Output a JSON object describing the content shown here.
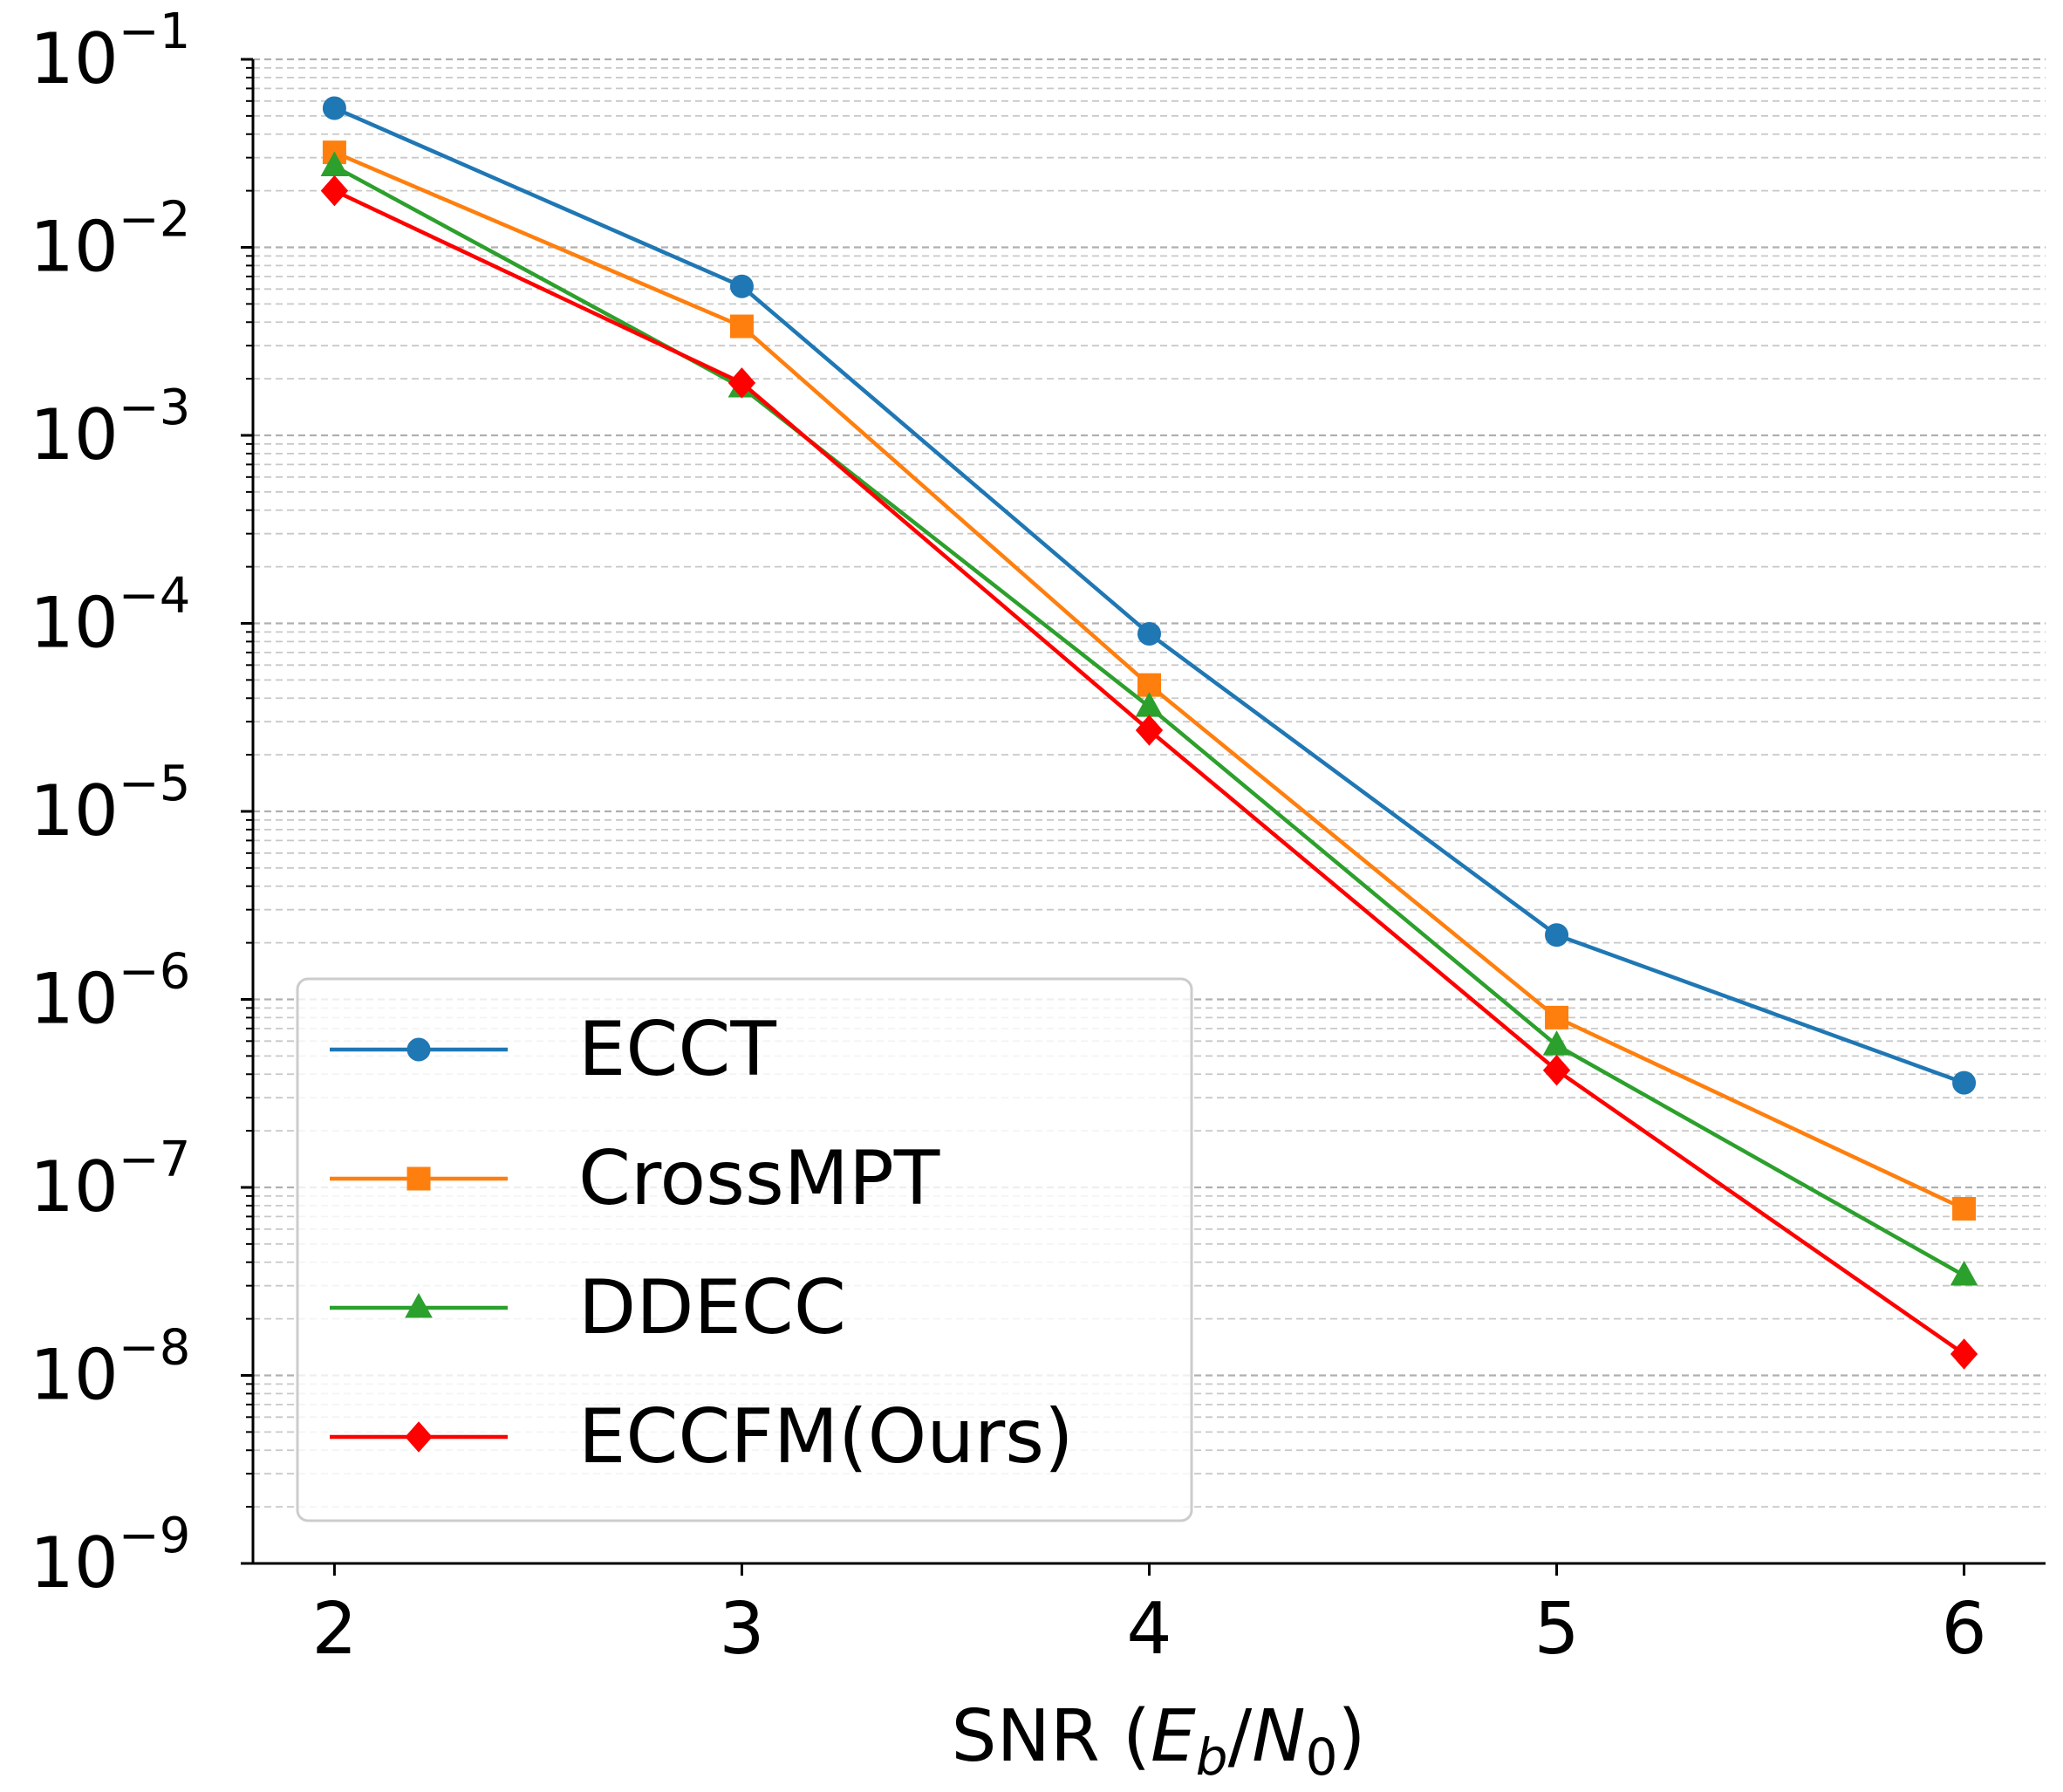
{
  "chart_data": {
    "type": "line",
    "title": "",
    "xlabel_prefix": "SNR (",
    "xlabel_E": "E",
    "xlabel_b": "b",
    "xlabel_slash": "/",
    "xlabel_N": "N",
    "xlabel_0": "0",
    "xlabel_suffix": ")",
    "ylabel": "",
    "yscale": "log",
    "xlim": [
      1.8,
      6.2
    ],
    "ylim": [
      1e-09,
      0.1
    ],
    "grid": "horizontal dashed (major and minor)",
    "legend_position": "lower-left",
    "x": [
      2,
      3,
      4,
      5,
      6
    ],
    "x_ticks": [
      "2",
      "3",
      "4",
      "5",
      "6"
    ],
    "y_ticks": [
      {
        "base": "10",
        "exp": "−1",
        "value": 0.1
      },
      {
        "base": "10",
        "exp": "−2",
        "value": 0.01
      },
      {
        "base": "10",
        "exp": "−3",
        "value": 0.001
      },
      {
        "base": "10",
        "exp": "−4",
        "value": 0.0001
      },
      {
        "base": "10",
        "exp": "−5",
        "value": 1e-05
      },
      {
        "base": "10",
        "exp": "−6",
        "value": 1e-06
      },
      {
        "base": "10",
        "exp": "−7",
        "value": 1e-07
      },
      {
        "base": "10",
        "exp": "−8",
        "value": 1e-08
      },
      {
        "base": "10",
        "exp": "−9",
        "value": 1e-09
      }
    ],
    "series": [
      {
        "name": "ECCT",
        "color": "#1f77b4",
        "marker": "circle",
        "values": [
          0.055,
          0.0062,
          8.8e-05,
          2.2e-06,
          3.6e-07
        ]
      },
      {
        "name": "CrossMPT",
        "color": "#ff7f0e",
        "marker": "square",
        "values": [
          0.032,
          0.0038,
          4.7e-05,
          8e-07,
          7.7e-08
        ]
      },
      {
        "name": "DDECC",
        "color": "#2ca02c",
        "marker": "triangle",
        "values": [
          0.027,
          0.0018,
          3.6e-05,
          5.7e-07,
          3.4e-08
        ]
      },
      {
        "name": "ECCFM(Ours)",
        "color": "#ff0000",
        "marker": "diamond",
        "values": [
          0.02,
          0.0019,
          2.7e-05,
          4.2e-07,
          1.3e-08
        ]
      }
    ]
  }
}
